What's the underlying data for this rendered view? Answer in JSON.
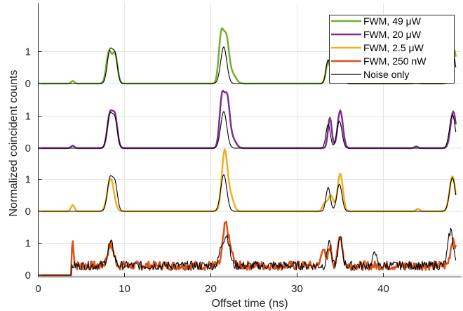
{
  "chart_data": {
    "type": "line",
    "xlabel": "Offset time (ns)",
    "ylabel": "Normalized coincident counts",
    "xlim": [
      0,
      48.5
    ],
    "x_ticks": [
      0,
      10,
      20,
      30,
      40
    ],
    "x_tick_labels": [
      "0",
      "10",
      "20",
      "30",
      "40"
    ],
    "grid": true,
    "legend_position": "top-right",
    "tracks": [
      {
        "name": "FWM, 250 nW",
        "offset": 0,
        "tick_labels": [
          "0",
          "1"
        ]
      },
      {
        "name": "FWM, 2.5 μW",
        "offset": 1,
        "tick_labels": [
          "0",
          "1"
        ]
      },
      {
        "name": "FWM, 20 μW",
        "offset": 2,
        "tick_labels": [
          "0",
          "1"
        ]
      },
      {
        "name": "FWM, 49 μW",
        "offset": 3,
        "tick_labels": [
          "0",
          "1"
        ]
      }
    ],
    "series": [
      {
        "name": "FWM, 49 μW",
        "color": "#77ac30",
        "track": 3,
        "peaks": [
          {
            "x": 4.0,
            "y": 0.08,
            "w": 0.18
          },
          {
            "x": 8.2,
            "y": 1.0,
            "w": 0.3
          },
          {
            "x": 8.9,
            "y": 0.92,
            "w": 0.28
          },
          {
            "x": 21.2,
            "y": 1.48,
            "w": 0.28
          },
          {
            "x": 21.8,
            "y": 1.35,
            "w": 0.3
          },
          {
            "x": 22.5,
            "y": 0.3,
            "w": 0.4
          },
          {
            "x": 33.6,
            "y": 0.7,
            "w": 0.25
          },
          {
            "x": 34.9,
            "y": 1.1,
            "w": 0.3
          },
          {
            "x": 43.8,
            "y": 0.05,
            "w": 0.2
          },
          {
            "x": 48.2,
            "y": 1.05,
            "w": 0.3
          }
        ]
      },
      {
        "name": "FWM, 20 μW",
        "color": "#7e2f8e",
        "track": 2,
        "peaks": [
          {
            "x": 4.0,
            "y": 0.08,
            "w": 0.18
          },
          {
            "x": 8.3,
            "y": 1.05,
            "w": 0.3
          },
          {
            "x": 8.9,
            "y": 0.95,
            "w": 0.28
          },
          {
            "x": 21.3,
            "y": 1.6,
            "w": 0.28
          },
          {
            "x": 21.9,
            "y": 1.45,
            "w": 0.28
          },
          {
            "x": 22.5,
            "y": 0.3,
            "w": 0.4
          },
          {
            "x": 33.8,
            "y": 0.95,
            "w": 0.22
          },
          {
            "x": 35.0,
            "y": 1.18,
            "w": 0.3
          },
          {
            "x": 43.8,
            "y": 0.05,
            "w": 0.2
          },
          {
            "x": 48.1,
            "y": 1.15,
            "w": 0.32
          }
        ]
      },
      {
        "name": "FWM, 2.5 μW",
        "color": "#edb120",
        "track": 1,
        "peaks": [
          {
            "x": 4.0,
            "y": 0.2,
            "w": 0.2
          },
          {
            "x": 8.4,
            "y": 1.02,
            "w": 0.38
          },
          {
            "x": 21.6,
            "y": 1.88,
            "w": 0.32
          },
          {
            "x": 22.3,
            "y": 0.45,
            "w": 0.35
          },
          {
            "x": 33.2,
            "y": 0.25,
            "w": 0.25
          },
          {
            "x": 33.9,
            "y": 0.5,
            "w": 0.3
          },
          {
            "x": 35.0,
            "y": 1.18,
            "w": 0.3
          },
          {
            "x": 44.0,
            "y": 0.08,
            "w": 0.2
          },
          {
            "x": 48.0,
            "y": 1.1,
            "w": 0.33
          }
        ]
      },
      {
        "name": "FWM, 250 nW",
        "color": "#d95319",
        "track": 0,
        "base": 0.3,
        "noise": 0.14,
        "start": 3.9,
        "peaks": [
          {
            "x": 4.0,
            "y": 0.75,
            "w": 0.12
          },
          {
            "x": 8.4,
            "y": 0.65,
            "w": 0.35
          },
          {
            "x": 21.7,
            "y": 1.25,
            "w": 0.3
          },
          {
            "x": 22.3,
            "y": 0.4,
            "w": 0.3
          },
          {
            "x": 33.0,
            "y": 0.6,
            "w": 0.2
          },
          {
            "x": 33.8,
            "y": 0.6,
            "w": 0.2
          },
          {
            "x": 35.0,
            "y": 0.95,
            "w": 0.25
          },
          {
            "x": 48.1,
            "y": 0.85,
            "w": 0.3
          }
        ]
      },
      {
        "name": "Noise only",
        "color": "#000000",
        "track": -1,
        "peaks": [
          {
            "x": 8.3,
            "y": 1.0,
            "w": 0.3
          },
          {
            "x": 8.9,
            "y": 0.85,
            "w": 0.28
          },
          {
            "x": 21.5,
            "y": 1.15,
            "w": 0.35
          },
          {
            "x": 33.6,
            "y": 0.75,
            "w": 0.25
          },
          {
            "x": 34.9,
            "y": 0.85,
            "w": 0.3
          },
          {
            "x": 48.0,
            "y": 1.05,
            "w": 0.33
          }
        ],
        "noise_track_peaks": [
          {
            "x": 8.4,
            "y": 0.7,
            "w": 0.35
          },
          {
            "x": 21.3,
            "y": 0.6,
            "w": 0.3
          },
          {
            "x": 21.9,
            "y": 0.85,
            "w": 0.3
          },
          {
            "x": 33.7,
            "y": 0.8,
            "w": 0.2
          },
          {
            "x": 35.0,
            "y": 0.85,
            "w": 0.25
          },
          {
            "x": 39.0,
            "y": 0.55,
            "w": 0.15
          },
          {
            "x": 47.8,
            "y": 1.1,
            "w": 0.3
          }
        ]
      }
    ]
  }
}
